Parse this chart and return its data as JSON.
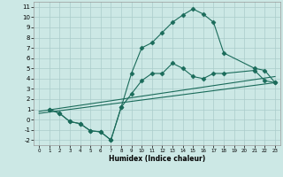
{
  "xlabel": "Humidex (Indice chaleur)",
  "bg_color": "#cce8e5",
  "grid_color": "#aaccca",
  "line_color": "#1a6b5a",
  "xlim": [
    -0.5,
    23.5
  ],
  "ylim": [
    -2.5,
    11.5
  ],
  "xticks": [
    0,
    1,
    2,
    3,
    4,
    5,
    6,
    7,
    8,
    9,
    10,
    11,
    12,
    13,
    14,
    15,
    16,
    17,
    18,
    19,
    20,
    21,
    22,
    23
  ],
  "yticks": [
    -2,
    -1,
    0,
    1,
    2,
    3,
    4,
    5,
    6,
    7,
    8,
    9,
    10,
    11
  ],
  "line_main_x": [
    1,
    2,
    3,
    4,
    5,
    6,
    7,
    8,
    9,
    10,
    11,
    12,
    13,
    14,
    15,
    16,
    17,
    18,
    21,
    22,
    23
  ],
  "line_main_y": [
    1.0,
    0.6,
    -0.2,
    -0.4,
    -1.1,
    -1.2,
    -2.0,
    1.2,
    4.5,
    7.0,
    7.5,
    8.5,
    9.5,
    10.2,
    10.8,
    10.3,
    9.5,
    6.5,
    5.0,
    4.8,
    3.6
  ],
  "line_trend1_x": [
    0,
    23
  ],
  "line_trend1_y": [
    0.8,
    4.2
  ],
  "line_trend2_x": [
    0,
    23
  ],
  "line_trend2_y": [
    0.6,
    3.6
  ],
  "line_lower_x": [
    1,
    2,
    3,
    4,
    5,
    6,
    7,
    8,
    9,
    10,
    11,
    12,
    13,
    14,
    15,
    16,
    17,
    18,
    21,
    22,
    23
  ],
  "line_lower_y": [
    1.0,
    0.6,
    -0.2,
    -0.4,
    -1.1,
    -1.2,
    -2.0,
    1.2,
    2.5,
    3.8,
    4.5,
    4.5,
    5.5,
    5.0,
    4.2,
    4.0,
    4.5,
    4.5,
    4.8,
    3.8,
    3.6
  ]
}
